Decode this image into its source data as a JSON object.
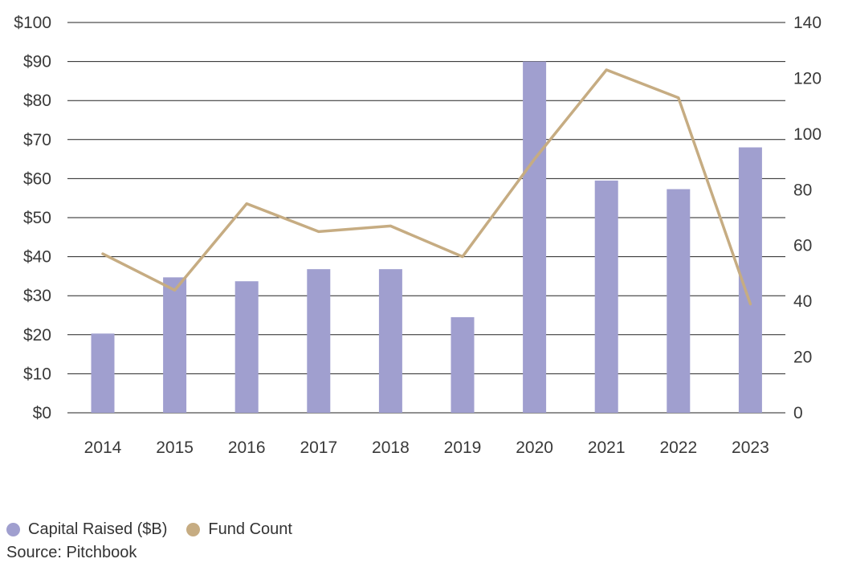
{
  "chart_data": {
    "type": "bar",
    "categories": [
      "2014",
      "2015",
      "2016",
      "2017",
      "2018",
      "2019",
      "2020",
      "2021",
      "2022",
      "2023"
    ],
    "series": [
      {
        "name": "Capital Raised ($B)",
        "type": "bar",
        "axis": "left",
        "color": "#a09fcf",
        "values": [
          20.3,
          34.7,
          33.7,
          36.8,
          36.8,
          24.5,
          90.0,
          59.5,
          57.3,
          68.0
        ]
      },
      {
        "name": "Fund Count",
        "type": "line",
        "axis": "right",
        "color": "#c6ac82",
        "values": [
          57,
          44,
          75,
          65,
          67,
          56,
          91,
          123,
          113,
          39
        ]
      }
    ],
    "y_left": {
      "ylim": [
        0,
        100
      ],
      "ticks": [
        0,
        10,
        20,
        30,
        40,
        50,
        60,
        70,
        80,
        90,
        100
      ],
      "tick_labels": [
        "$0",
        "$10",
        "$20",
        "$30",
        "$40",
        "$50",
        "$60",
        "$70",
        "$80",
        "$90",
        "$100"
      ]
    },
    "y_right": {
      "ylim": [
        0,
        140
      ],
      "ticks": [
        0,
        20,
        40,
        60,
        80,
        100,
        120,
        140
      ],
      "tick_labels": [
        "0",
        "20",
        "40",
        "60",
        "80",
        "100",
        "120",
        "140"
      ]
    },
    "grid": true,
    "legend_position": "bottom-left"
  },
  "legend": {
    "items": [
      {
        "label": "Capital Raised ($B)",
        "color": "#a09fcf"
      },
      {
        "label": "Fund Count",
        "color": "#c6ac82"
      }
    ]
  },
  "source": "Source: Pitchbook"
}
